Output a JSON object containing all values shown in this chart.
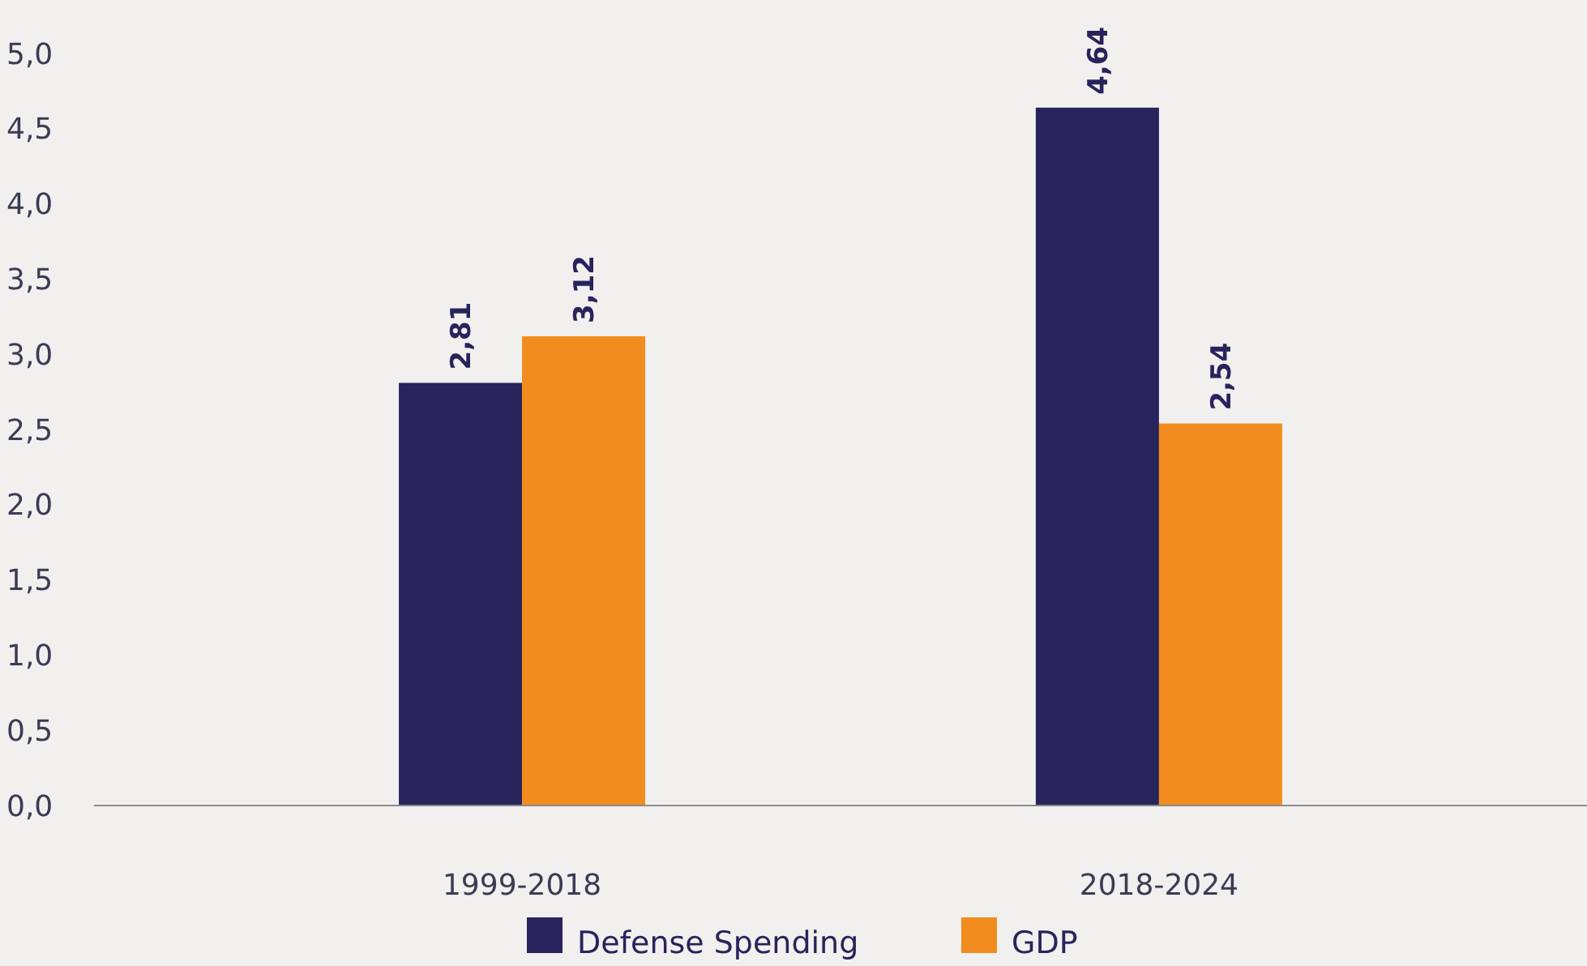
{
  "chart_data": {
    "type": "bar",
    "categories": [
      "1999-2018",
      "2018-2024"
    ],
    "series": [
      {
        "name": "Defense Spending",
        "color": "#29235c",
        "values": [
          2.81,
          4.64
        ],
        "value_labels": [
          "2,81",
          "4,64"
        ]
      },
      {
        "name": "GDP",
        "color": "#f28c1e",
        "values": [
          3.12,
          2.54
        ],
        "value_labels": [
          "3,12",
          "2,54"
        ]
      }
    ],
    "ylim": [
      0,
      5
    ],
    "yticks": [
      {
        "value": 0,
        "label": "0,0"
      },
      {
        "value": 0.5,
        "label": "0,5"
      },
      {
        "value": 1,
        "label": "1,0"
      },
      {
        "value": 1.5,
        "label": "1,5"
      },
      {
        "value": 2,
        "label": "2,0"
      },
      {
        "value": 2.5,
        "label": "2,5"
      },
      {
        "value": 3,
        "label": "3,0"
      },
      {
        "value": 3.5,
        "label": "3,5"
      },
      {
        "value": 4,
        "label": "4,0"
      },
      {
        "value": 4.5,
        "label": "4,5"
      },
      {
        "value": 5,
        "label": "5,0"
      }
    ],
    "grid": false,
    "legend": "bottom"
  }
}
